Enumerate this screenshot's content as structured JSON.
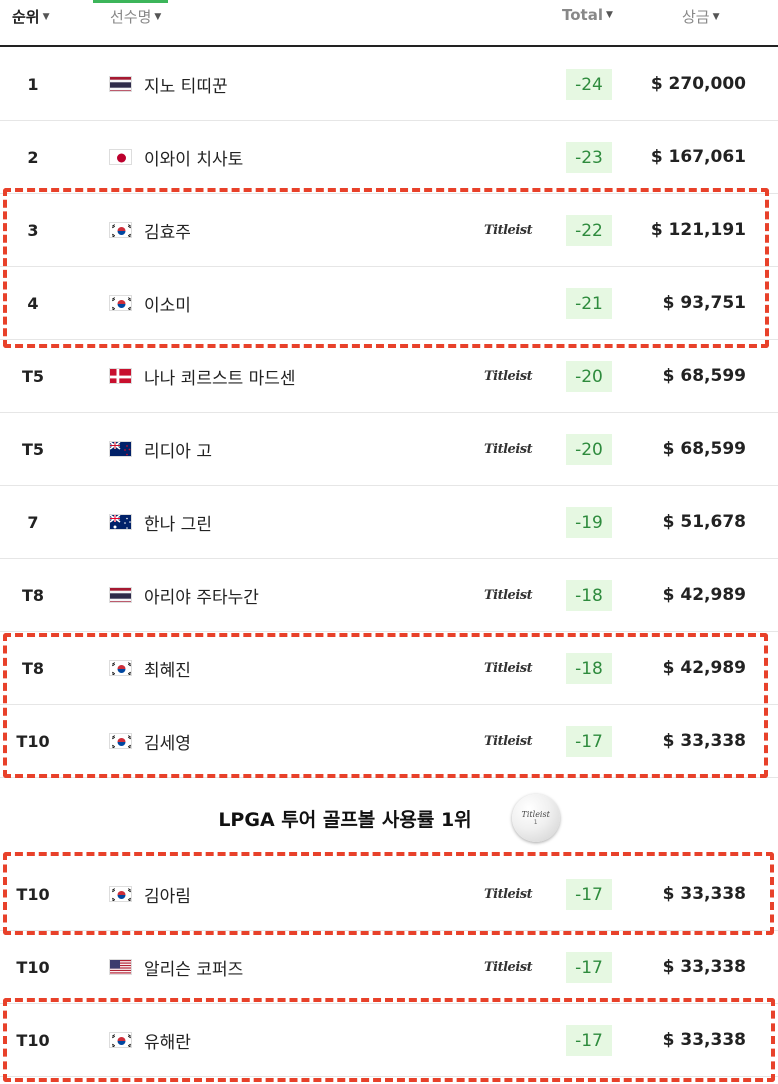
{
  "header": {
    "rank_label": "순위",
    "name_label": "선수명",
    "total_label": "Total",
    "prize_label": "상금"
  },
  "rows_top": [
    {
      "rank": "1",
      "flag": "thailand",
      "name": "지노 티띠꾼",
      "sponsor": "",
      "total": "-24",
      "prize": "$ 270,000"
    },
    {
      "rank": "2",
      "flag": "japan",
      "name": "이와이 치사토",
      "sponsor": "",
      "total": "-23",
      "prize": "$ 167,061"
    },
    {
      "rank": "3",
      "flag": "korea",
      "name": "김효주",
      "sponsor": "Titleist",
      "total": "-22",
      "prize": "$ 121,191"
    },
    {
      "rank": "4",
      "flag": "korea",
      "name": "이소미",
      "sponsor": "",
      "total": "-21",
      "prize": "$ 93,751"
    },
    {
      "rank": "T5",
      "flag": "denmark",
      "name": "나나 쾨르스트 마드센",
      "sponsor": "Titleist",
      "total": "-20",
      "prize": "$ 68,599"
    },
    {
      "rank": "T5",
      "flag": "new-zealand",
      "name": "리디아 고",
      "sponsor": "Titleist",
      "total": "-20",
      "prize": "$ 68,599"
    },
    {
      "rank": "7",
      "flag": "australia",
      "name": "한나 그린",
      "sponsor": "",
      "total": "-19",
      "prize": "$ 51,678"
    },
    {
      "rank": "T8",
      "flag": "thailand",
      "name": "아리야 주타누간",
      "sponsor": "Titleist",
      "total": "-18",
      "prize": "$ 42,989"
    },
    {
      "rank": "T8",
      "flag": "korea",
      "name": "최혜진",
      "sponsor": "Titleist",
      "total": "-18",
      "prize": "$ 42,989"
    },
    {
      "rank": "T10",
      "flag": "korea",
      "name": "김세영",
      "sponsor": "Titleist",
      "total": "-17",
      "prize": "$ 33,338"
    }
  ],
  "banner": {
    "text": "LPGA 투어 골프볼 사용률 1위",
    "ball_brand": "Titleist",
    "ball_number": "1"
  },
  "rows_bottom": [
    {
      "rank": "T10",
      "flag": "korea",
      "name": "김아림",
      "sponsor": "Titleist",
      "total": "-17",
      "prize": "$ 33,338"
    },
    {
      "rank": "T10",
      "flag": "usa",
      "name": "알리슨 코퍼즈",
      "sponsor": "Titleist",
      "total": "-17",
      "prize": "$ 33,338"
    },
    {
      "rank": "T10",
      "flag": "korea",
      "name": "유해란",
      "sponsor": "",
      "total": "-17",
      "prize": "$ 33,338"
    }
  ],
  "colors": {
    "highlight": "#e8412a",
    "score_bg": "#e6f8e2",
    "score_text": "#2e8b3d",
    "accent": "#3cb55a"
  }
}
